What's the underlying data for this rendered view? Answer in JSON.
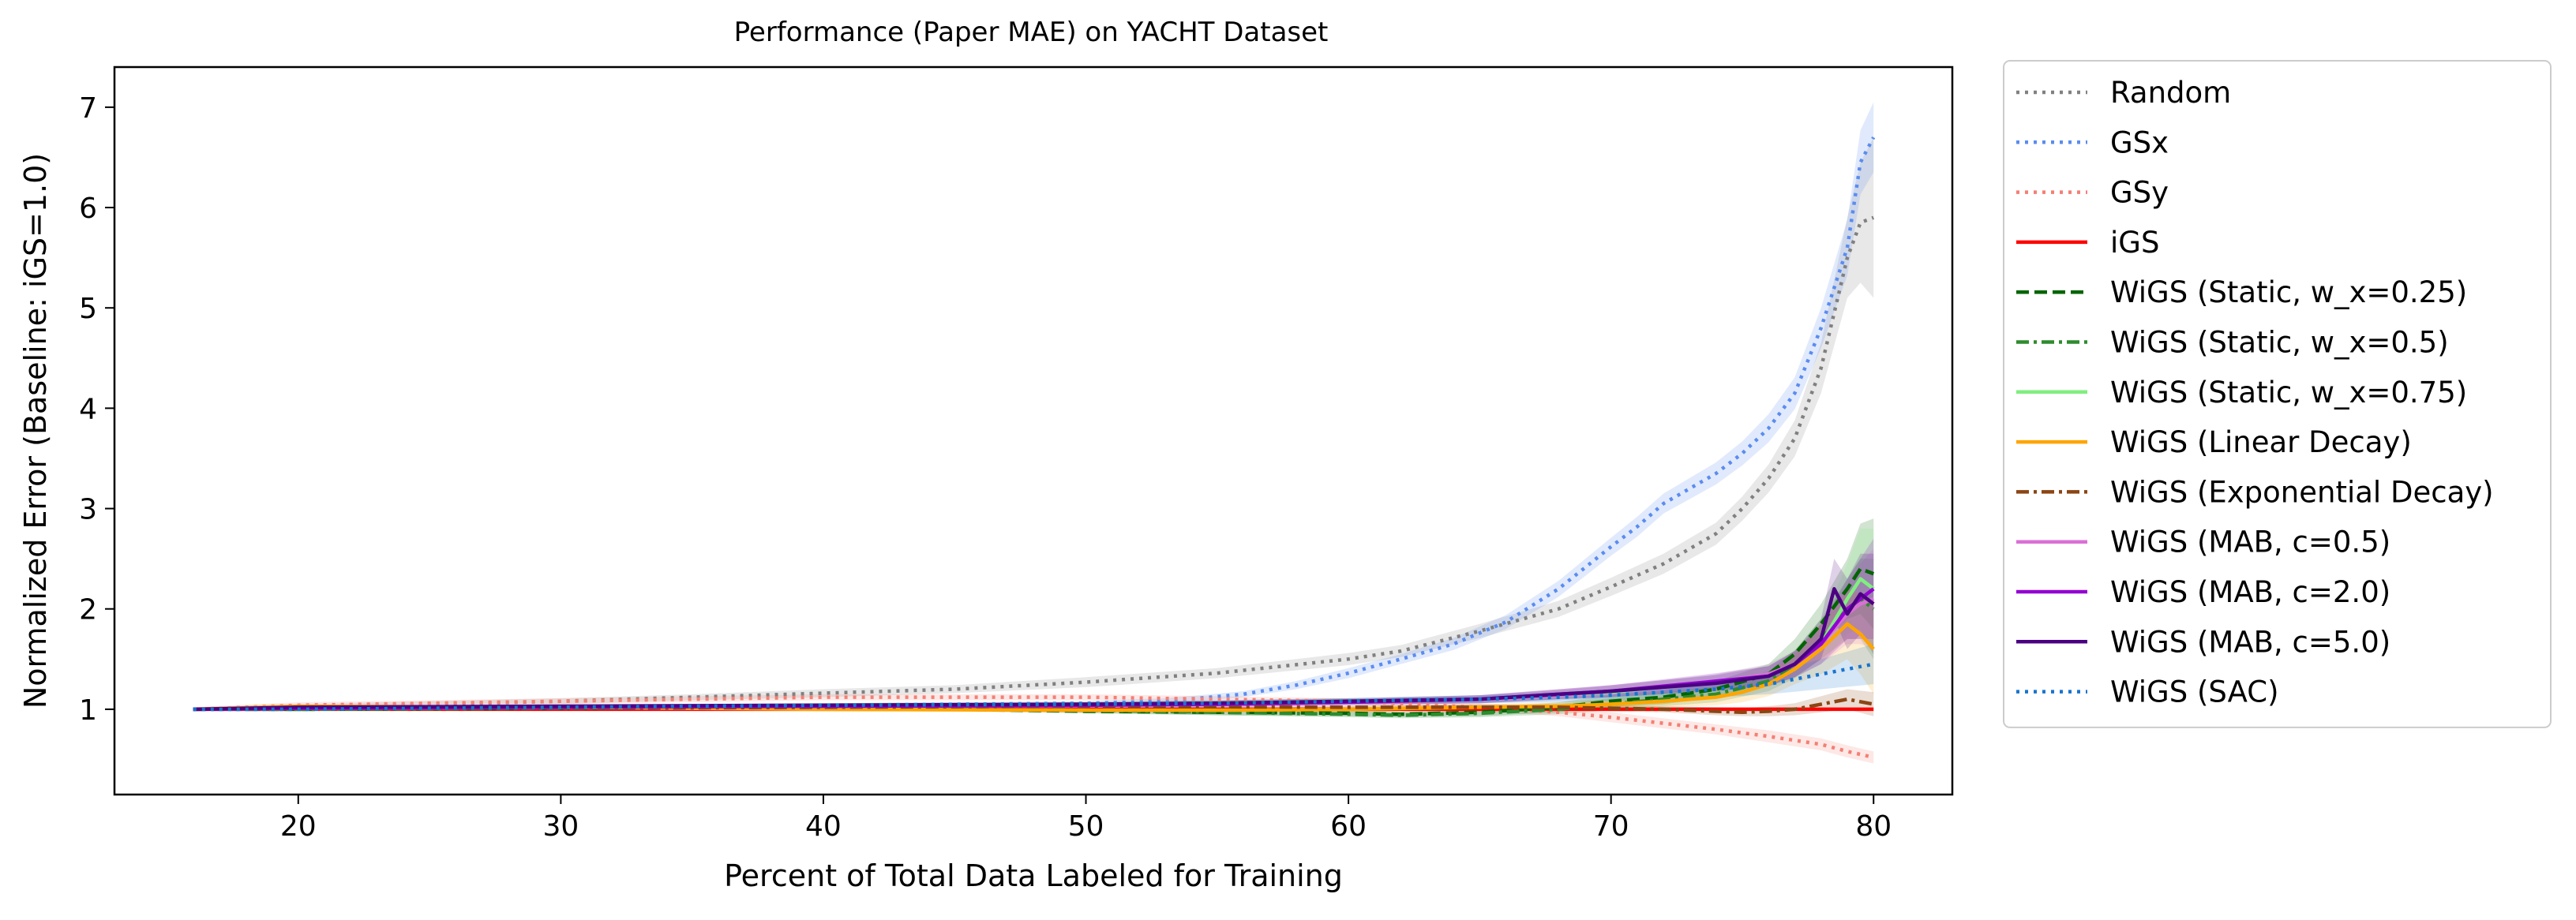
{
  "chart_data": {
    "type": "line",
    "title": "Performance (Paper MAE) on YACHT Dataset",
    "xlabel": "Percent of Total Data Labeled for Training",
    "ylabel": "Normalized Error (Baseline: iGS=1.0)",
    "xlim": [
      13,
      83
    ],
    "ylim": [
      0.15,
      7.4
    ],
    "xticks": [
      20,
      30,
      40,
      50,
      60,
      70,
      80
    ],
    "yticks": [
      1,
      2,
      3,
      4,
      5,
      6,
      7
    ],
    "grid": false,
    "legend_position": "outside right",
    "series": [
      {
        "name": "Random",
        "color": "#808080",
        "style": "dotted",
        "opacity": 1,
        "x": [
          16,
          20,
          25,
          30,
          35,
          40,
          45,
          50,
          55,
          60,
          62,
          65,
          68,
          70,
          72,
          74,
          75,
          76,
          77,
          78,
          79,
          79.5,
          80
        ],
        "y": [
          1.0,
          1.02,
          1.05,
          1.08,
          1.12,
          1.16,
          1.2,
          1.27,
          1.36,
          1.5,
          1.58,
          1.78,
          2.0,
          2.22,
          2.45,
          2.75,
          3.0,
          3.3,
          3.7,
          4.4,
          5.5,
          5.85,
          5.9
        ],
        "band": [
          0.02,
          0.03,
          0.03,
          0.03,
          0.03,
          0.04,
          0.04,
          0.05,
          0.05,
          0.06,
          0.06,
          0.07,
          0.08,
          0.09,
          0.1,
          0.11,
          0.12,
          0.14,
          0.18,
          0.25,
          0.4,
          0.6,
          0.8
        ]
      },
      {
        "name": "GSx",
        "color": "#5b8cf0",
        "style": "dotted",
        "opacity": 1,
        "x": [
          16,
          20,
          25,
          30,
          35,
          40,
          45,
          50,
          53,
          56,
          58,
          60,
          62,
          64,
          66,
          68,
          70,
          71,
          72,
          74,
          75,
          76,
          77,
          78,
          79,
          79.5,
          80
        ],
        "y": [
          1.0,
          1.0,
          1.01,
          1.02,
          1.03,
          1.04,
          1.05,
          1.06,
          1.08,
          1.15,
          1.24,
          1.36,
          1.5,
          1.65,
          1.87,
          2.2,
          2.62,
          2.82,
          3.05,
          3.35,
          3.55,
          3.8,
          4.15,
          4.8,
          5.6,
          6.45,
          6.7
        ],
        "band": [
          0.01,
          0.01,
          0.01,
          0.01,
          0.01,
          0.02,
          0.02,
          0.02,
          0.03,
          0.03,
          0.04,
          0.05,
          0.05,
          0.06,
          0.07,
          0.08,
          0.09,
          0.1,
          0.1,
          0.11,
          0.12,
          0.14,
          0.16,
          0.2,
          0.28,
          0.32,
          0.35
        ]
      },
      {
        "name": "GSy",
        "color": "#f47f73",
        "style": "dotted",
        "opacity": 1,
        "x": [
          16,
          20,
          25,
          30,
          35,
          40,
          45,
          50,
          55,
          60,
          65,
          68,
          70,
          72,
          74,
          76,
          78,
          79,
          80
        ],
        "y": [
          1.0,
          1.04,
          1.06,
          1.08,
          1.1,
          1.12,
          1.12,
          1.12,
          1.1,
          1.08,
          1.02,
          0.97,
          0.92,
          0.86,
          0.8,
          0.73,
          0.65,
          0.58,
          0.52
        ],
        "band": [
          0.02,
          0.03,
          0.03,
          0.03,
          0.03,
          0.03,
          0.03,
          0.03,
          0.03,
          0.03,
          0.04,
          0.04,
          0.05,
          0.05,
          0.05,
          0.06,
          0.06,
          0.06,
          0.06
        ]
      },
      {
        "name": "iGS",
        "color": "#ff0000",
        "style": "solid",
        "opacity": 1,
        "x": [
          16,
          80
        ],
        "y": [
          1.0,
          1.0
        ],
        "band": [
          0.0,
          0.0
        ]
      },
      {
        "name": "WiGS (Static, w_x=0.25)",
        "color": "#006400",
        "style": "dashed",
        "opacity": 1,
        "x": [
          16,
          20,
          30,
          40,
          50,
          55,
          60,
          62,
          65,
          68,
          70,
          72,
          74,
          76,
          77,
          78,
          79,
          79.5,
          80
        ],
        "y": [
          1.0,
          1.0,
          1.01,
          1.02,
          0.98,
          0.97,
          0.96,
          0.95,
          0.97,
          1.02,
          1.08,
          1.12,
          1.2,
          1.35,
          1.55,
          1.85,
          2.2,
          2.4,
          2.35
        ],
        "band": [
          0.01,
          0.01,
          0.02,
          0.02,
          0.02,
          0.03,
          0.03,
          0.03,
          0.04,
          0.05,
          0.06,
          0.07,
          0.08,
          0.1,
          0.15,
          0.2,
          0.3,
          0.45,
          0.55
        ]
      },
      {
        "name": "WiGS (Static, w_x=0.5)",
        "color": "#2e8b2e",
        "style": "dashdot",
        "opacity": 1,
        "x": [
          16,
          20,
          30,
          40,
          50,
          55,
          60,
          62,
          65,
          68,
          70,
          72,
          74,
          76,
          77,
          78,
          79,
          79.5,
          80
        ],
        "y": [
          1.0,
          1.0,
          1.01,
          1.02,
          0.99,
          0.97,
          0.95,
          0.94,
          0.96,
          1.0,
          1.05,
          1.1,
          1.15,
          1.28,
          1.45,
          1.7,
          2.0,
          2.1,
          2.0
        ],
        "band": [
          0.01,
          0.01,
          0.02,
          0.02,
          0.02,
          0.03,
          0.03,
          0.03,
          0.04,
          0.05,
          0.06,
          0.07,
          0.08,
          0.1,
          0.14,
          0.2,
          0.3,
          0.4,
          0.5
        ]
      },
      {
        "name": "WiGS (Static, w_x=0.75)",
        "color": "#80ee80",
        "style": "solid",
        "opacity": 1,
        "x": [
          16,
          20,
          30,
          40,
          50,
          55,
          60,
          65,
          68,
          70,
          72,
          74,
          76,
          77,
          78,
          79,
          79.5,
          80
        ],
        "y": [
          1.0,
          1.01,
          1.02,
          1.04,
          1.05,
          1.06,
          1.08,
          1.1,
          1.14,
          1.17,
          1.22,
          1.27,
          1.35,
          1.45,
          1.65,
          2.1,
          2.3,
          2.2
        ],
        "band": [
          0.01,
          0.01,
          0.02,
          0.02,
          0.03,
          0.03,
          0.03,
          0.04,
          0.05,
          0.06,
          0.07,
          0.08,
          0.1,
          0.14,
          0.2,
          0.35,
          0.5,
          0.6
        ]
      },
      {
        "name": "WiGS (Linear Decay)",
        "color": "#ffa500",
        "style": "solid",
        "opacity": 1,
        "x": [
          16,
          20,
          30,
          40,
          50,
          55,
          60,
          65,
          68,
          70,
          72,
          74,
          75,
          76,
          77,
          78,
          79,
          79.5,
          80
        ],
        "y": [
          1.0,
          1.03,
          1.02,
          1.0,
          0.99,
          0.99,
          1.0,
          1.02,
          1.03,
          1.05,
          1.08,
          1.12,
          1.17,
          1.25,
          1.4,
          1.6,
          1.85,
          1.75,
          1.6
        ],
        "band": [
          0.01,
          0.02,
          0.02,
          0.02,
          0.02,
          0.02,
          0.03,
          0.03,
          0.04,
          0.05,
          0.06,
          0.08,
          0.1,
          0.12,
          0.15,
          0.25,
          0.35,
          0.4,
          0.45
        ]
      },
      {
        "name": "WiGS (Exponential Decay)",
        "color": "#8b4513",
        "style": "dashdot",
        "opacity": 1,
        "x": [
          16,
          20,
          30,
          40,
          50,
          60,
          65,
          68,
          70,
          72,
          74,
          75,
          76,
          77,
          78,
          79,
          80
        ],
        "y": [
          1.0,
          1.01,
          1.01,
          1.02,
          1.03,
          1.02,
          1.02,
          1.02,
          1.01,
          1.0,
          0.98,
          0.97,
          0.98,
          1.0,
          1.05,
          1.1,
          1.05
        ],
        "band": [
          0.01,
          0.01,
          0.01,
          0.02,
          0.02,
          0.02,
          0.03,
          0.03,
          0.03,
          0.03,
          0.04,
          0.04,
          0.05,
          0.06,
          0.08,
          0.1,
          0.12
        ]
      },
      {
        "name": "WiGS (MAB, c=0.5)",
        "color": "#da70d6",
        "style": "solid",
        "opacity": 1,
        "x": [
          16,
          20,
          30,
          40,
          50,
          55,
          60,
          65,
          68,
          70,
          72,
          74,
          76,
          77,
          78,
          79,
          79.5,
          80
        ],
        "y": [
          1.0,
          1.01,
          1.02,
          1.03,
          1.04,
          1.05,
          1.07,
          1.1,
          1.14,
          1.18,
          1.22,
          1.27,
          1.35,
          1.45,
          1.65,
          1.95,
          2.05,
          2.1
        ],
        "band": [
          0.01,
          0.01,
          0.02,
          0.02,
          0.02,
          0.03,
          0.03,
          0.04,
          0.05,
          0.06,
          0.07,
          0.08,
          0.1,
          0.13,
          0.2,
          0.3,
          0.4,
          0.5
        ]
      },
      {
        "name": "WiGS (MAB, c=2.0)",
        "color": "#9400d3",
        "style": "solid",
        "opacity": 1,
        "x": [
          16,
          20,
          30,
          40,
          50,
          55,
          60,
          65,
          68,
          70,
          72,
          74,
          76,
          77,
          78,
          79,
          79.5,
          80
        ],
        "y": [
          1.0,
          1.01,
          1.02,
          1.03,
          1.04,
          1.05,
          1.07,
          1.1,
          1.15,
          1.18,
          1.23,
          1.28,
          1.33,
          1.45,
          1.65,
          2.0,
          2.1,
          2.2
        ],
        "band": [
          0.01,
          0.01,
          0.02,
          0.02,
          0.02,
          0.03,
          0.03,
          0.04,
          0.05,
          0.06,
          0.07,
          0.08,
          0.1,
          0.13,
          0.2,
          0.3,
          0.4,
          0.5
        ]
      },
      {
        "name": "WiGS (MAB, c=5.0)",
        "color": "#4b0082",
        "style": "solid",
        "opacity": 1,
        "x": [
          16,
          20,
          30,
          40,
          50,
          55,
          60,
          65,
          68,
          70,
          72,
          74,
          76,
          77,
          78,
          78.5,
          79,
          79.5,
          80
        ],
        "y": [
          1.0,
          1.02,
          1.03,
          1.04,
          1.05,
          1.06,
          1.08,
          1.1,
          1.15,
          1.18,
          1.22,
          1.26,
          1.33,
          1.45,
          1.7,
          2.2,
          1.95,
          2.15,
          2.05
        ],
        "band": [
          0.01,
          0.01,
          0.02,
          0.02,
          0.02,
          0.03,
          0.03,
          0.04,
          0.05,
          0.06,
          0.07,
          0.08,
          0.1,
          0.13,
          0.2,
          0.3,
          0.35,
          0.4,
          0.5
        ]
      },
      {
        "name": "WiGS (SAC)",
        "color": "#1874cd",
        "style": "dotted",
        "opacity": 1,
        "x": [
          16,
          20,
          30,
          40,
          50,
          55,
          60,
          65,
          68,
          70,
          72,
          74,
          76,
          78,
          80
        ],
        "y": [
          1.0,
          1.0,
          1.02,
          1.04,
          1.05,
          1.06,
          1.08,
          1.1,
          1.12,
          1.14,
          1.17,
          1.2,
          1.25,
          1.35,
          1.45
        ],
        "band": [
          0.01,
          0.01,
          0.02,
          0.02,
          0.02,
          0.03,
          0.03,
          0.04,
          0.05,
          0.06,
          0.07,
          0.08,
          0.1,
          0.15,
          0.2
        ]
      }
    ]
  }
}
